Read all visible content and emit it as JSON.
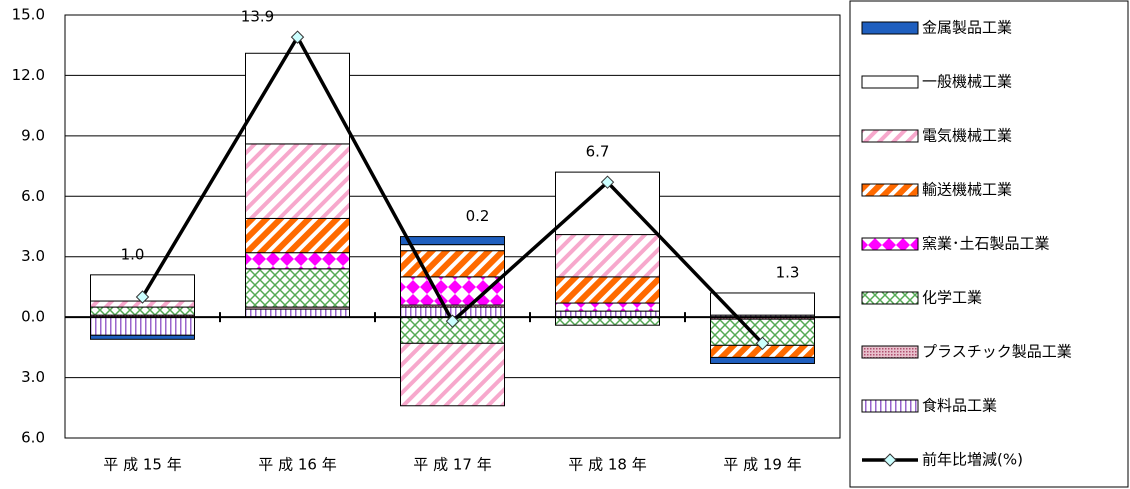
{
  "chart_data": {
    "type": "stacked_bar",
    "categories": [
      "平 成  15 年",
      "平 成  16 年",
      "平 成  17 年",
      "平 成  18 年",
      "平 成  19 年"
    ],
    "ylim": [
      -6,
      15
    ],
    "yticks": [
      {
        "value": -6,
        "label": "6.0"
      },
      {
        "value": -3,
        "label": "3.0"
      },
      {
        "value": 0,
        "label": "0.0"
      },
      {
        "value": 3,
        "label": "3.0"
      },
      {
        "value": 6,
        "label": "6.0"
      },
      {
        "value": 9,
        "label": "9.0"
      },
      {
        "value": 12,
        "label": "12.0"
      },
      {
        "value": 15,
        "label": "15.0"
      }
    ],
    "grid": true,
    "legend": "right",
    "series": [
      {
        "name": "金属製品工業",
        "color": "#1f5fbf",
        "pattern": "solid",
        "values": [
          -0.2,
          0,
          0.4,
          0,
          -0.3
        ]
      },
      {
        "name": "一般機械工業",
        "color": "#ffffff",
        "pattern": "solid",
        "values": [
          1.3,
          4.5,
          0.3,
          3.1,
          1.1
        ]
      },
      {
        "name": "電気機械工業",
        "color": "#f7a8cc",
        "pattern": "diagonal",
        "values": [
          0.3,
          3.7,
          -3.1,
          2.1,
          0
        ]
      },
      {
        "name": "輸送機械工業",
        "color": "#ff6a00",
        "pattern": "diagonal-thick",
        "values": [
          0,
          1.7,
          1.3,
          1.3,
          -0.6
        ]
      },
      {
        "name": "窯業･土石製品工業",
        "color": "#ff00ff",
        "pattern": "diamond",
        "values": [
          0,
          0.8,
          1.4,
          0.4,
          0
        ]
      },
      {
        "name": "化学工業",
        "color": "#55aa55",
        "pattern": "cross",
        "values": [
          0.4,
          1.9,
          -1.3,
          -0.4,
          -1.3
        ]
      },
      {
        "name": "プラスチック製品工業",
        "color": "#b05070",
        "pattern": "dots",
        "values": [
          0.1,
          0.1,
          0.1,
          0,
          -0.1
        ]
      },
      {
        "name": "食料品工業",
        "color": "#9966cc",
        "pattern": "vertical",
        "values": [
          -0.9,
          0.4,
          0.5,
          0.3,
          0.1
        ]
      }
    ],
    "line": {
      "name": "前年比増減(%)",
      "color": "#000000",
      "marker_color": "#ccffff",
      "values": [
        1.0,
        13.9,
        -0.2,
        6.7,
        -1.3
      ],
      "value_labels": [
        "1.0",
        "13.9",
        "0.2",
        "6.7",
        "1.3"
      ]
    }
  }
}
